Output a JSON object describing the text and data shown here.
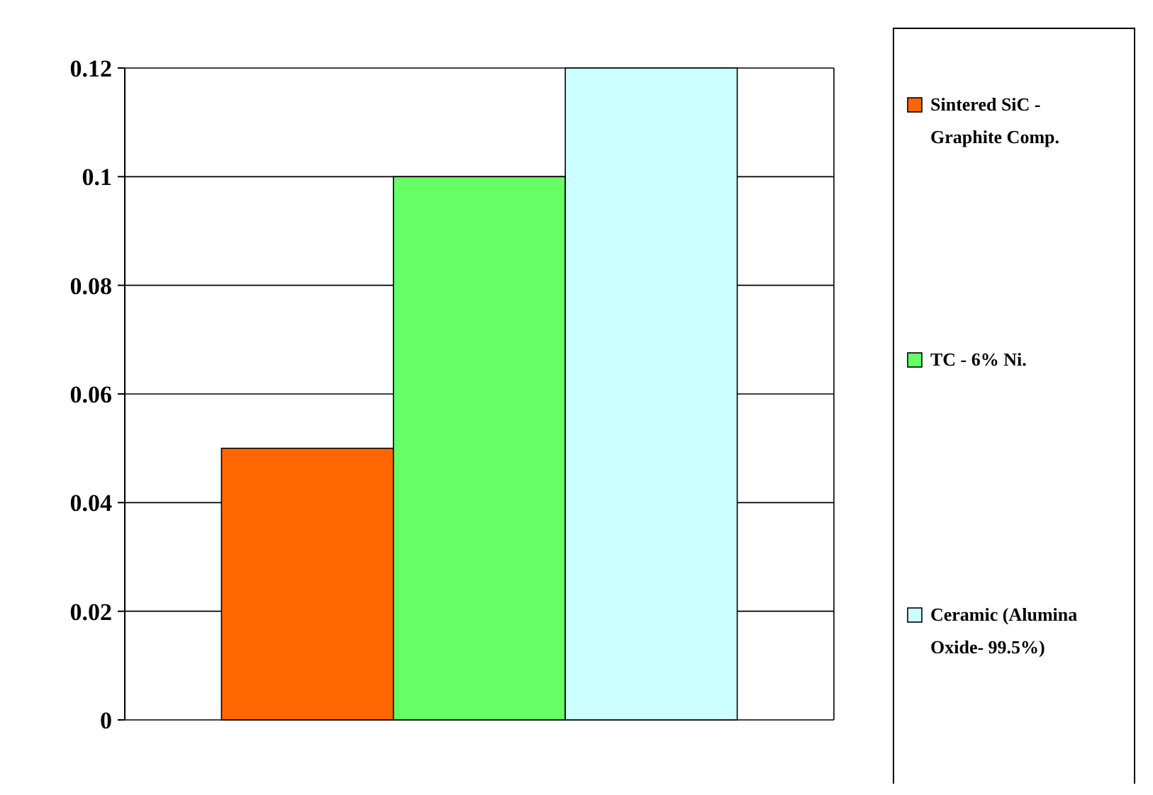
{
  "chart_data": {
    "type": "bar",
    "categories": [
      null
    ],
    "series": [
      {
        "name": "Sintered SiC - Graphite Comp.",
        "color": "#ff6600",
        "values": [
          0.05
        ]
      },
      {
        "name": "TC - 6% Ni.",
        "color": "#66ff66",
        "values": [
          0.1
        ]
      },
      {
        "name": "Ceramic (Alumina Oxide- 99.5%)",
        "color": "#ccffff",
        "values": [
          0.12
        ]
      }
    ],
    "ylim": [
      0,
      0.12
    ],
    "yticks": [
      0,
      0.02,
      0.04,
      0.06,
      0.08,
      0.1,
      0.12
    ],
    "grid": "y",
    "legend": "right"
  }
}
